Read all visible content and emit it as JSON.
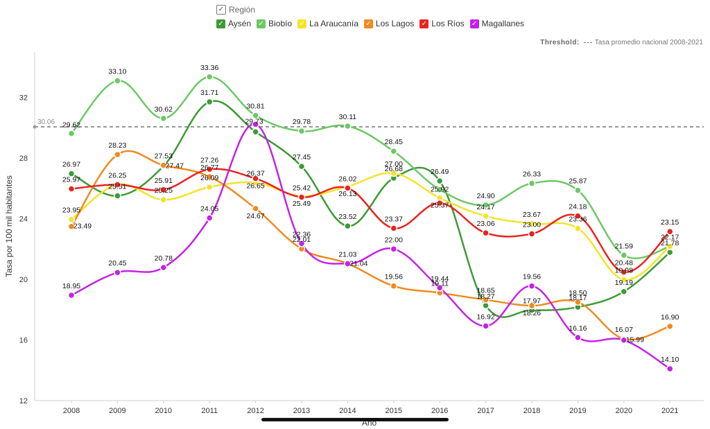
{
  "legend": {
    "title": "Región",
    "items": [
      {
        "label": "Aysén",
        "color": "#3d9a35"
      },
      {
        "label": "Biobío",
        "color": "#6cc865"
      },
      {
        "label": "La Araucanía",
        "color": "#f5e426"
      },
      {
        "label": "Los Lagos",
        "color": "#f08a1e"
      },
      {
        "label": "Los Ríos",
        "color": "#e8231e"
      },
      {
        "label": "Magallanes",
        "color": "#c422e6"
      }
    ]
  },
  "threshold": {
    "label": "Threshold:",
    "name": "Tasa promedio nacional 2008-2021",
    "value": 30.06,
    "value_label": "30.06"
  },
  "chart_data": {
    "type": "line",
    "x": [
      2008,
      2009,
      2010,
      2011,
      2012,
      2013,
      2014,
      2015,
      2016,
      2017,
      2018,
      2019,
      2020,
      2021
    ],
    "xlabel": "Año",
    "ylabel": "Tasa por 100 mil habitantes",
    "ylim": [
      12,
      35
    ],
    "yticks": [
      12,
      16,
      20,
      24,
      28,
      32
    ],
    "grid": false,
    "legend_position": "top-center",
    "series": [
      {
        "name": "Aysén",
        "color": "#3d9a35",
        "values": [
          26.97,
          25.51,
          27.47,
          31.71,
          29.73,
          27.45,
          23.52,
          26.68,
          26.49,
          18.27,
          17.97,
          18.17,
          19.19,
          21.78
        ]
      },
      {
        "name": "Biobío",
        "color": "#6cc865",
        "values": [
          29.62,
          33.1,
          30.62,
          33.36,
          30.81,
          29.78,
          30.11,
          28.45,
          25.92,
          24.9,
          26.33,
          25.87,
          21.59,
          22.17
        ]
      },
      {
        "name": "La Araucanía",
        "color": "#f5e426",
        "values": [
          23.95,
          26.25,
          25.25,
          26.09,
          26.37,
          25.49,
          26.13,
          27.0,
          25.37,
          24.17,
          23.67,
          23.36,
          19.98,
          22.17
        ]
      },
      {
        "name": "Los Lagos",
        "color": "#f08a1e",
        "values": [
          23.49,
          28.23,
          27.53,
          26.77,
          24.67,
          22.01,
          21.04,
          19.56,
          19.11,
          18.65,
          18.26,
          18.5,
          16.07,
          16.9
        ]
      },
      {
        "name": "Los Ríos",
        "color": "#e8231e",
        "values": [
          25.97,
          26.25,
          25.91,
          27.26,
          26.65,
          25.42,
          26.02,
          23.37,
          25.03,
          23.06,
          23.0,
          24.18,
          20.48,
          23.15
        ]
      },
      {
        "name": "Magallanes",
        "color": "#c422e6",
        "values": [
          18.95,
          20.45,
          20.78,
          24.05,
          30.23,
          22.36,
          21.03,
          22.0,
          19.44,
          16.92,
          19.56,
          16.16,
          15.99,
          14.1
        ]
      }
    ],
    "data_labels": [
      {
        "text": "26.97",
        "series": 0,
        "i": 0,
        "dx": 0,
        "dy": -10
      },
      {
        "text": "25.51",
        "series": 0,
        "i": 1,
        "dx": 0,
        "dy": -10
      },
      {
        "text": "27.47",
        "series": 0,
        "i": 2,
        "dx": 16,
        "dy": 3
      },
      {
        "text": "31.71",
        "series": 0,
        "i": 3,
        "dx": 0,
        "dy": -10
      },
      {
        "text": "29.73",
        "series": 0,
        "i": 4,
        "dx": -2,
        "dy": -12
      },
      {
        "text": "27.45",
        "series": 0,
        "i": 5,
        "dx": 0,
        "dy": -10
      },
      {
        "text": "23.52",
        "series": 0,
        "i": 6,
        "dx": 0,
        "dy": -10
      },
      {
        "text": "26.68",
        "series": 0,
        "i": 7,
        "dx": 0,
        "dy": -10
      },
      {
        "text": "26.49",
        "series": 0,
        "i": 8,
        "dx": 0,
        "dy": -10
      },
      {
        "text": "18.27",
        "series": 0,
        "i": 9,
        "dx": 0,
        "dy": -10
      },
      {
        "text": "17.97",
        "series": 0,
        "i": 10,
        "dx": 0,
        "dy": -10
      },
      {
        "text": "18.17",
        "series": 0,
        "i": 11,
        "dx": 0,
        "dy": -10
      },
      {
        "text": "19.19",
        "series": 0,
        "i": 12,
        "dx": 0,
        "dy": -10
      },
      {
        "text": "21.78",
        "series": 0,
        "i": 13,
        "dx": 0,
        "dy": -10
      },
      {
        "text": "29.62",
        "series": 1,
        "i": 0,
        "dx": 0,
        "dy": -9
      },
      {
        "text": "33.10",
        "series": 1,
        "i": 1,
        "dx": 0,
        "dy": -10
      },
      {
        "text": "30.62",
        "series": 1,
        "i": 2,
        "dx": 0,
        "dy": -10
      },
      {
        "text": "33.36",
        "series": 1,
        "i": 3,
        "dx": 0,
        "dy": -10
      },
      {
        "text": "30.81",
        "series": 1,
        "i": 4,
        "dx": 0,
        "dy": -10
      },
      {
        "text": "29.78",
        "series": 1,
        "i": 5,
        "dx": 0,
        "dy": -10
      },
      {
        "text": "30.11",
        "series": 1,
        "i": 6,
        "dx": 0,
        "dy": -10
      },
      {
        "text": "28.45",
        "series": 1,
        "i": 7,
        "dx": 0,
        "dy": -10
      },
      {
        "text": "25.92",
        "series": 1,
        "i": 8,
        "dx": 0,
        "dy": 3
      },
      {
        "text": "24.90",
        "series": 1,
        "i": 9,
        "dx": 0,
        "dy": -10
      },
      {
        "text": "26.33",
        "series": 1,
        "i": 10,
        "dx": 0,
        "dy": -10
      },
      {
        "text": "25.87",
        "series": 1,
        "i": 11,
        "dx": 0,
        "dy": -10
      },
      {
        "text": "21.59",
        "series": 1,
        "i": 12,
        "dx": 0,
        "dy": -10
      },
      {
        "text": "22.17",
        "series": 1,
        "i": 13,
        "dx": 0,
        "dy": -10
      },
      {
        "text": "23.95",
        "series": 2,
        "i": 0,
        "dx": 0,
        "dy": -10
      },
      {
        "text": "26.25",
        "series": 2,
        "i": 1,
        "dx": 0,
        "dy": -10
      },
      {
        "text": "25.25",
        "series": 2,
        "i": 2,
        "dx": 0,
        "dy": -10
      },
      {
        "text": "26.09",
        "series": 2,
        "i": 3,
        "dx": 0,
        "dy": -10
      },
      {
        "text": "26.37",
        "series": 2,
        "i": 4,
        "dx": 0,
        "dy": -10
      },
      {
        "text": "25.49",
        "series": 2,
        "i": 5,
        "dx": 0,
        "dy": 14
      },
      {
        "text": "26.13",
        "series": 2,
        "i": 6,
        "dx": 0,
        "dy": 14
      },
      {
        "text": "27.00",
        "series": 2,
        "i": 7,
        "dx": 0,
        "dy": -10
      },
      {
        "text": "25.37",
        "series": 2,
        "i": 8,
        "dx": 0,
        "dy": 14
      },
      {
        "text": "24.17",
        "series": 2,
        "i": 9,
        "dx": 0,
        "dy": -10
      },
      {
        "text": "23.67",
        "series": 2,
        "i": 10,
        "dx": 0,
        "dy": -10
      },
      {
        "text": "23.36",
        "series": 2,
        "i": 11,
        "dx": 0,
        "dy": -10
      },
      {
        "text": "19.98",
        "series": 2,
        "i": 12,
        "dx": 0,
        "dy": -10
      },
      {
        "text": "23.49",
        "series": 3,
        "i": 0,
        "dx": 16,
        "dy": 3
      },
      {
        "text": "28.23",
        "series": 3,
        "i": 1,
        "dx": 0,
        "dy": -10
      },
      {
        "text": "27.53",
        "series": 3,
        "i": 2,
        "dx": 0,
        "dy": -10
      },
      {
        "text": "26.77",
        "series": 3,
        "i": 3,
        "dx": 0,
        "dy": -10
      },
      {
        "text": "24.67",
        "series": 3,
        "i": 4,
        "dx": 0,
        "dy": 14
      },
      {
        "text": "22.01",
        "series": 3,
        "i": 5,
        "dx": 0,
        "dy": -10
      },
      {
        "text": "21.04",
        "series": 3,
        "i": 6,
        "dx": 16,
        "dy": 3
      },
      {
        "text": "19.56",
        "series": 3,
        "i": 7,
        "dx": 0,
        "dy": -10
      },
      {
        "text": "19.11",
        "series": 3,
        "i": 8,
        "dx": 0,
        "dy": -10
      },
      {
        "text": "18.65",
        "series": 3,
        "i": 9,
        "dx": 0,
        "dy": -10
      },
      {
        "text": "18.26",
        "series": 3,
        "i": 10,
        "dx": 0,
        "dy": 14
      },
      {
        "text": "18.50",
        "series": 3,
        "i": 11,
        "dx": 0,
        "dy": -10
      },
      {
        "text": "16.07",
        "series": 3,
        "i": 12,
        "dx": 0,
        "dy": -10
      },
      {
        "text": "16.90",
        "series": 3,
        "i": 13,
        "dx": 0,
        "dy": -10
      },
      {
        "text": "25.97",
        "series": 4,
        "i": 0,
        "dx": 0,
        "dy": -10
      },
      {
        "text": "25.91",
        "series": 4,
        "i": 2,
        "dx": 0,
        "dy": -10
      },
      {
        "text": "27.26",
        "series": 4,
        "i": 3,
        "dx": 0,
        "dy": -10
      },
      {
        "text": "26.65",
        "series": 4,
        "i": 4,
        "dx": 0,
        "dy": 14
      },
      {
        "text": "25.42",
        "series": 4,
        "i": 5,
        "dx": 0,
        "dy": -10
      },
      {
        "text": "26.02",
        "series": 4,
        "i": 6,
        "dx": 0,
        "dy": -10
      },
      {
        "text": "23.37",
        "series": 4,
        "i": 7,
        "dx": 0,
        "dy": -10
      },
      {
        "text": "23.06",
        "series": 4,
        "i": 9,
        "dx": 0,
        "dy": -10
      },
      {
        "text": "23.00",
        "series": 4,
        "i": 10,
        "dx": 0,
        "dy": -10
      },
      {
        "text": "24.18",
        "series": 4,
        "i": 11,
        "dx": 0,
        "dy": -10
      },
      {
        "text": "20.48",
        "series": 4,
        "i": 12,
        "dx": 0,
        "dy": -10
      },
      {
        "text": "23.15",
        "series": 4,
        "i": 13,
        "dx": 0,
        "dy": -10
      },
      {
        "text": "18.95",
        "series": 5,
        "i": 0,
        "dx": 0,
        "dy": -10
      },
      {
        "text": "20.45",
        "series": 5,
        "i": 1,
        "dx": 0,
        "dy": -10
      },
      {
        "text": "20.78",
        "series": 5,
        "i": 2,
        "dx": 0,
        "dy": -10
      },
      {
        "text": "24.05",
        "series": 5,
        "i": 3,
        "dx": 0,
        "dy": -10
      },
      {
        "text": "22.36",
        "series": 5,
        "i": 5,
        "dx": 0,
        "dy": -10
      },
      {
        "text": "21.03",
        "series": 5,
        "i": 6,
        "dx": 0,
        "dy": -10
      },
      {
        "text": "22.00",
        "series": 5,
        "i": 7,
        "dx": 0,
        "dy": -10
      },
      {
        "text": "19.44",
        "series": 5,
        "i": 8,
        "dx": 0,
        "dy": -10
      },
      {
        "text": "16.92",
        "series": 5,
        "i": 9,
        "dx": 0,
        "dy": -10
      },
      {
        "text": "19.56",
        "series": 5,
        "i": 10,
        "dx": 0,
        "dy": -10
      },
      {
        "text": "16.16",
        "series": 5,
        "i": 11,
        "dx": 0,
        "dy": -10
      },
      {
        "text": "15.99",
        "series": 5,
        "i": 12,
        "dx": 16,
        "dy": 3
      },
      {
        "text": "14.10",
        "series": 5,
        "i": 13,
        "dx": 0,
        "dy": -10
      }
    ]
  }
}
